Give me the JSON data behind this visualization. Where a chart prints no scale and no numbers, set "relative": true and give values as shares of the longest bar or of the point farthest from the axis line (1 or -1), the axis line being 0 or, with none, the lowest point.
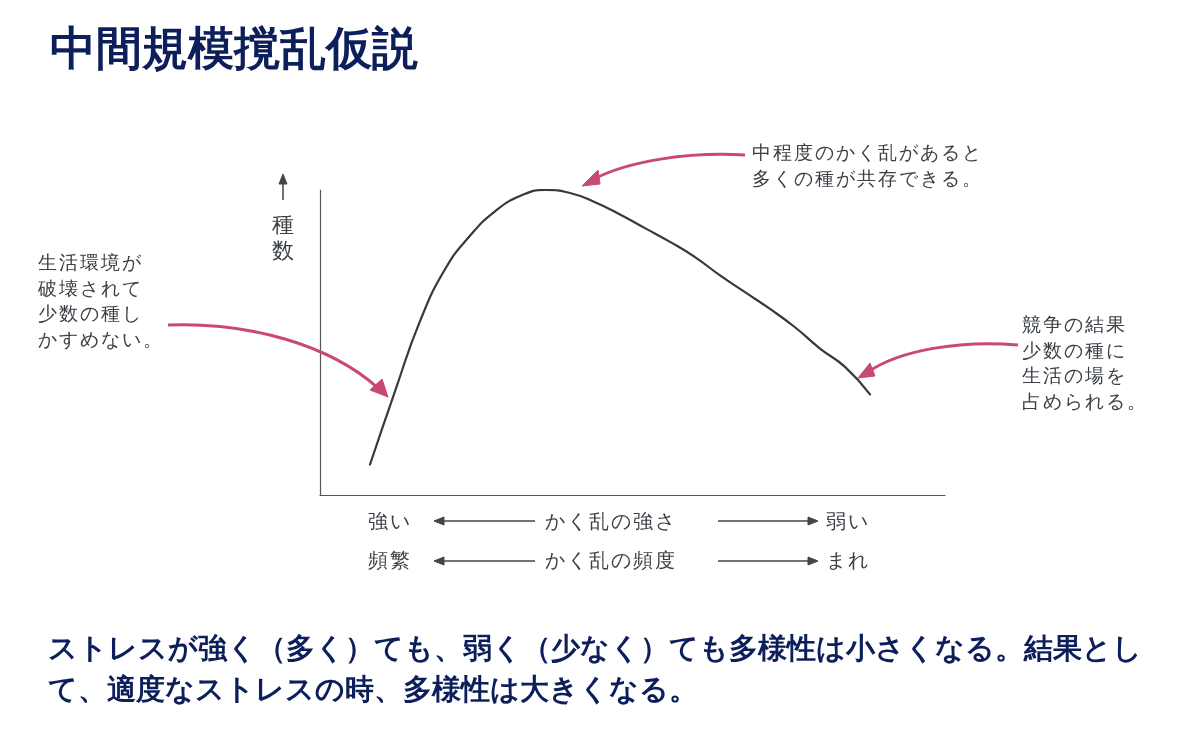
{
  "chart_data": {
    "type": "line",
    "title": "中間規模撹乱仮説",
    "ylabel": "種数",
    "xlabel": "かく乱の強さ",
    "relative": true,
    "marker": "none",
    "line_style": "solid",
    "grid": false,
    "categories": [
      null,
      null,
      null,
      null,
      null,
      null,
      null,
      null,
      null,
      null,
      null,
      null,
      null,
      null,
      null,
      null,
      null,
      null,
      null,
      null,
      null,
      null,
      null,
      null,
      null,
      null
    ],
    "series": [
      {
        "color": "#333a40",
        "values": [
          null,
          null,
          0.1,
          0.34,
          0.57,
          0.74,
          0.85,
          0.93,
          0.98,
          1,
          0.99,
          0.96,
          0.92,
          0.875,
          0.83,
          0.78,
          0.72,
          0.665,
          0.61,
          0.55,
          0.48,
          0.42,
          0.33,
          null,
          null,
          null
        ]
      }
    ],
    "annotations": [
      "中程度のかく乱があると多くの種が共存できる。",
      "生活環境が破壊されて少数の種しかすめない。",
      "競争の結果少数の種に生活の場を占められる。",
      "強い",
      "弱い",
      "頻繁",
      "かく乱の頻度",
      "まれ",
      "ストレスが強く（多く）ても、弱く（少なく）ても多様性は小さくなる。結果として、適度なストレスの時、多様性は大きくなる。"
    ]
  }
}
